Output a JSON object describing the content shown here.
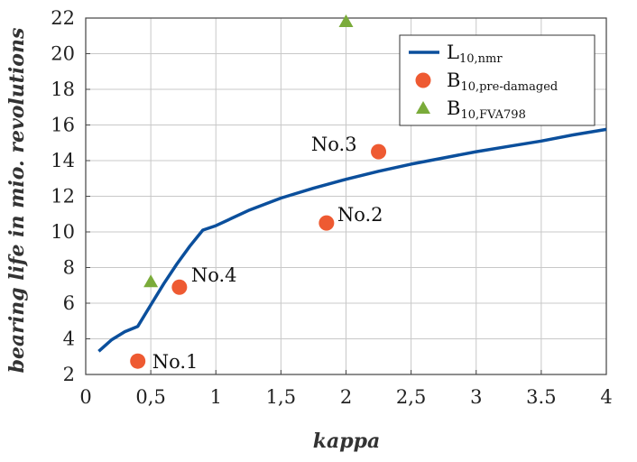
{
  "chart_data": {
    "type": "scatter",
    "xlabel": "kappa",
    "ylabel": "bearing life in mio. revolutions",
    "xlim": [
      0,
      4
    ],
    "ylim": [
      2,
      22
    ],
    "grid": true,
    "legend_position": "top-right",
    "x_ticks": [
      {
        "value": 0,
        "label": "0"
      },
      {
        "value": 0.5,
        "label": "0,5"
      },
      {
        "value": 1,
        "label": "1"
      },
      {
        "value": 1.5,
        "label": "1,5"
      },
      {
        "value": 2,
        "label": "2"
      },
      {
        "value": 2.5,
        "label": "2,5"
      },
      {
        "value": 3,
        "label": "3"
      },
      {
        "value": 3.5,
        "label": "3.5"
      },
      {
        "value": 4,
        "label": "4"
      }
    ],
    "y_ticks": [
      {
        "value": 2,
        "label": "2"
      },
      {
        "value": 4,
        "label": "4"
      },
      {
        "value": 6,
        "label": "6"
      },
      {
        "value": 8,
        "label": "8"
      },
      {
        "value": 10,
        "label": "10"
      },
      {
        "value": 12,
        "label": "12"
      },
      {
        "value": 14,
        "label": "14"
      },
      {
        "value": 16,
        "label": "16"
      },
      {
        "value": 18,
        "label": "18"
      },
      {
        "value": 20,
        "label": "20"
      },
      {
        "value": 22,
        "label": "22"
      }
    ],
    "series": [
      {
        "legend_main": "L",
        "legend_sub": "10,nmr",
        "kind": "line",
        "color": "#0b4f9c",
        "points": [
          {
            "x": 0.1,
            "y": 3.3
          },
          {
            "x": 0.2,
            "y": 3.95
          },
          {
            "x": 0.3,
            "y": 4.4
          },
          {
            "x": 0.4,
            "y": 4.7
          },
          {
            "x": 0.5,
            "y": 5.9
          },
          {
            "x": 0.6,
            "y": 7.1
          },
          {
            "x": 0.7,
            "y": 8.2
          },
          {
            "x": 0.8,
            "y": 9.2
          },
          {
            "x": 0.9,
            "y": 10.1
          },
          {
            "x": 1.0,
            "y": 10.35
          },
          {
            "x": 1.25,
            "y": 11.2
          },
          {
            "x": 1.5,
            "y": 11.9
          },
          {
            "x": 1.75,
            "y": 12.45
          },
          {
            "x": 2.0,
            "y": 12.95
          },
          {
            "x": 2.25,
            "y": 13.4
          },
          {
            "x": 2.5,
            "y": 13.8
          },
          {
            "x": 2.75,
            "y": 14.15
          },
          {
            "x": 3.0,
            "y": 14.5
          },
          {
            "x": 3.25,
            "y": 14.8
          },
          {
            "x": 3.5,
            "y": 15.1
          },
          {
            "x": 3.75,
            "y": 15.45
          },
          {
            "x": 4.0,
            "y": 15.75
          }
        ]
      },
      {
        "legend_main": "B",
        "legend_sub": "10,pre-damaged",
        "kind": "circle",
        "color": "#ee5a32",
        "points": [
          {
            "x": 0.4,
            "y": 2.75,
            "label": "No.1"
          },
          {
            "x": 1.85,
            "y": 10.5,
            "label": "No.2"
          },
          {
            "x": 2.25,
            "y": 14.5,
            "label": "No.3"
          },
          {
            "x": 0.72,
            "y": 6.9,
            "label": "No.4"
          }
        ]
      },
      {
        "legend_main": "B",
        "legend_sub": "10,FVA798",
        "kind": "triangle",
        "color": "#7aab3a",
        "points": [
          {
            "x": 0.5,
            "y": 7.2
          },
          {
            "x": 2.0,
            "y": 21.8
          }
        ]
      }
    ]
  }
}
